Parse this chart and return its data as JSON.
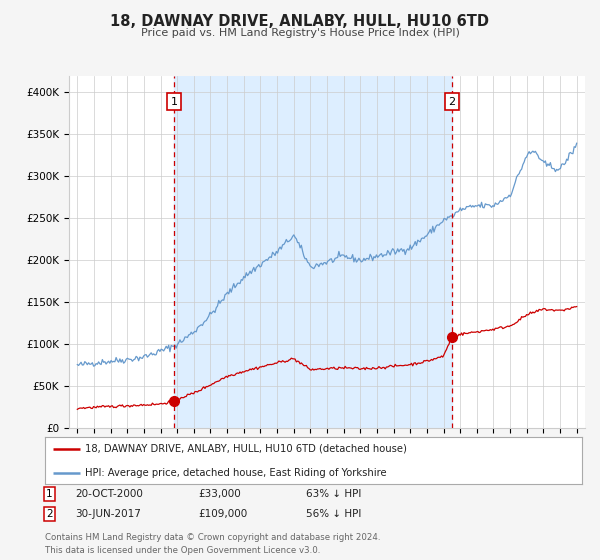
{
  "title": "18, DAWNAY DRIVE, ANLABY, HULL, HU10 6TD",
  "subtitle": "Price paid vs. HM Land Registry's House Price Index (HPI)",
  "legend_line1": "18, DAWNAY DRIVE, ANLABY, HULL, HU10 6TD (detached house)",
  "legend_line2": "HPI: Average price, detached house, East Riding of Yorkshire",
  "sale1_date": "20-OCT-2000",
  "sale1_price": "£33,000",
  "sale1_hpi": "63% ↓ HPI",
  "sale1_year": 2000.8,
  "sale1_value": 33000,
  "sale2_date": "30-JUN-2017",
  "sale2_price": "£109,000",
  "sale2_hpi": "56% ↓ HPI",
  "sale2_year": 2017.5,
  "sale2_value": 109000,
  "red_line_color": "#cc0000",
  "blue_line_color": "#6699cc",
  "shaded_region_color": "#ddeeff",
  "dashed_line_color": "#cc0000",
  "background_color": "#f5f5f5",
  "plot_bg_color": "#ffffff",
  "grid_color": "#cccccc",
  "footer_text": "Contains HM Land Registry data © Crown copyright and database right 2024.\nThis data is licensed under the Open Government Licence v3.0.",
  "ylim": [
    0,
    420000
  ],
  "xlim_start": 1994.5,
  "xlim_end": 2025.5,
  "yticks": [
    0,
    50000,
    100000,
    150000,
    200000,
    250000,
    300000,
    350000,
    400000
  ],
  "ytick_labels": [
    "£0",
    "£50K",
    "£100K",
    "£150K",
    "£200K",
    "£250K",
    "£300K",
    "£350K",
    "£400K"
  ],
  "xticks": [
    1995,
    1996,
    1997,
    1998,
    1999,
    2000,
    2001,
    2002,
    2003,
    2004,
    2005,
    2006,
    2007,
    2008,
    2009,
    2010,
    2011,
    2012,
    2013,
    2014,
    2015,
    2016,
    2017,
    2018,
    2019,
    2020,
    2021,
    2022,
    2023,
    2024,
    2025
  ]
}
